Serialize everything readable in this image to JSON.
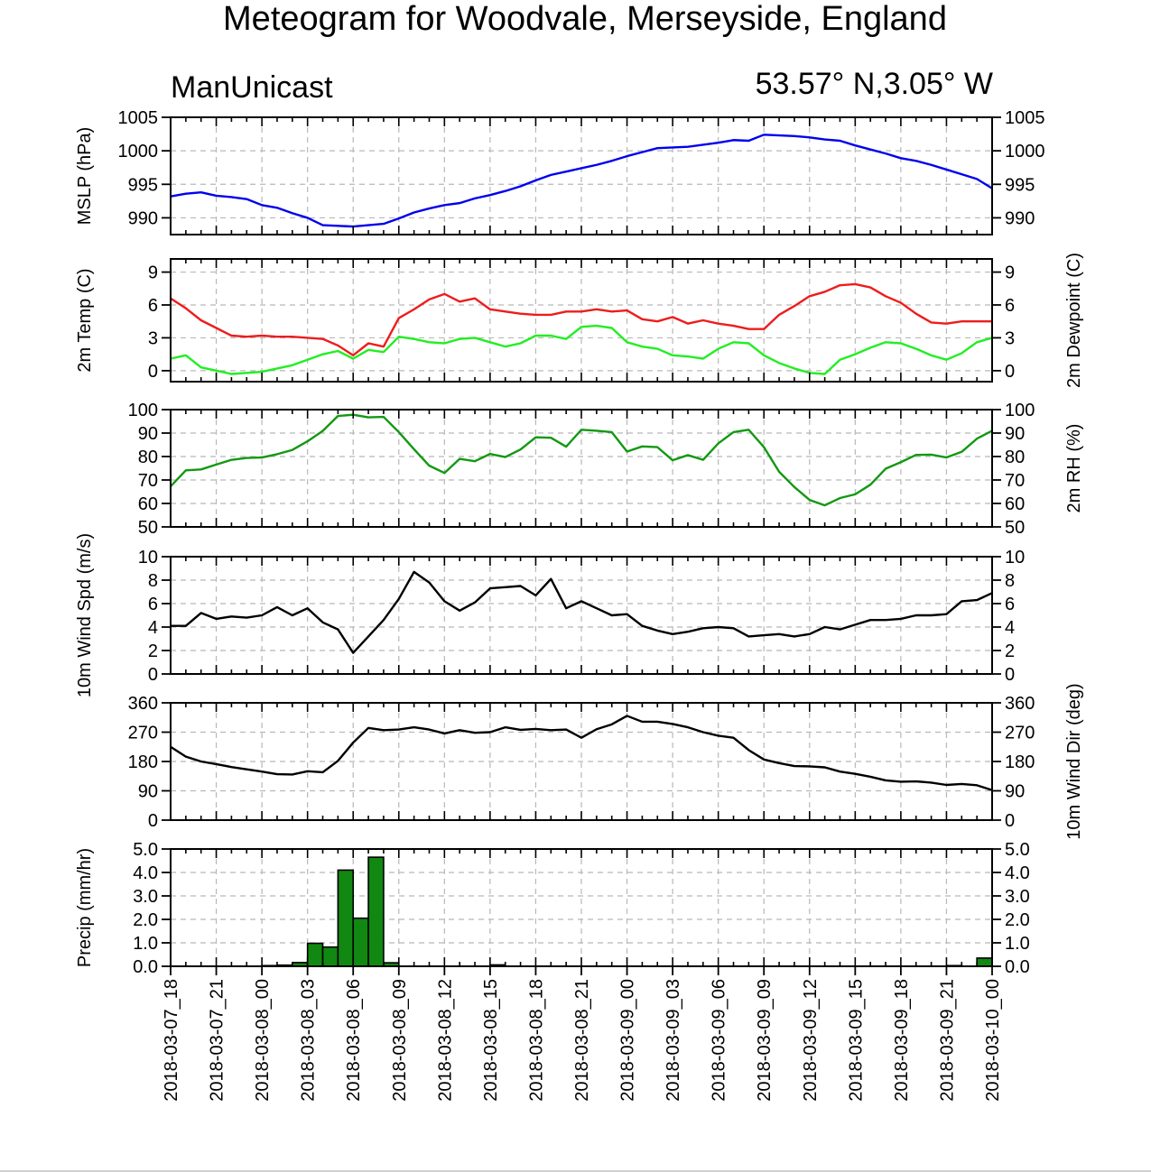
{
  "header": {
    "title": "Meteogram for Woodvale, Merseyside, England",
    "model_label": "ManUnicast",
    "location_label": "53.57° N,3.05° W"
  },
  "colors": {
    "mslp": "#0000ee",
    "temp": "#ee1c1c",
    "dewpoint": "#22ee22",
    "rh": "#119911",
    "wind": "#000000",
    "precip": "#118811",
    "grid": "#b8b8b8"
  },
  "chart_data": [
    {
      "type": "line",
      "id": "mslp",
      "ylabel": "MSLP (hPa)",
      "ylabel_right": "",
      "ylim": [
        987.5,
        1005
      ],
      "yticks": [
        990,
        995,
        1000,
        1005
      ],
      "ytick_labels": [
        "990",
        "995",
        "1000",
        "1005"
      ],
      "series": [
        {
          "key": "mslp",
          "values": [
            993.2,
            993.6,
            993.8,
            993.3,
            993.1,
            992.8,
            991.9,
            991.5,
            990.7,
            990.0,
            988.9,
            988.8,
            988.7,
            988.9,
            989.1,
            989.9,
            990.8,
            991.4,
            991.9,
            992.2,
            992.9,
            993.4,
            994.0,
            994.7,
            995.6,
            996.4,
            996.9,
            997.4,
            997.9,
            998.5,
            999.2,
            999.8,
            1000.4,
            1000.5,
            1000.6,
            1000.9,
            1001.2,
            1001.6,
            1001.5,
            1002.4,
            1002.3,
            1002.2,
            1002.0,
            1001.7,
            1001.5,
            1000.8,
            1000.2,
            999.6,
            998.9,
            998.5,
            997.9,
            997.2,
            996.5,
            995.8,
            994.4
          ]
        }
      ]
    },
    {
      "type": "line",
      "id": "temp",
      "ylabel": "2m Temp (C)",
      "ylabel_right": "2m Dewpoint (C)",
      "ylim": [
        -1,
        10.2
      ],
      "yticks": [
        0,
        3,
        6,
        9
      ],
      "ytick_labels": [
        "0",
        "3",
        "6",
        "9"
      ],
      "series": [
        {
          "key": "temp",
          "values": [
            6.6,
            5.7,
            4.6,
            3.9,
            3.2,
            3.1,
            3.2,
            3.1,
            3.1,
            3.0,
            2.9,
            2.3,
            1.4,
            2.5,
            2.2,
            4.8,
            5.6,
            6.5,
            7.0,
            6.3,
            6.6,
            5.6,
            5.4,
            5.2,
            5.1,
            5.1,
            5.4,
            5.4,
            5.6,
            5.4,
            5.5,
            4.7,
            4.5,
            4.9,
            4.3,
            4.6,
            4.3,
            4.1,
            3.8,
            3.8,
            5.1,
            5.9,
            6.8,
            7.2,
            7.8,
            7.9,
            7.6,
            6.8,
            6.2,
            5.2,
            4.4,
            4.3,
            4.5,
            4.5,
            4.5
          ]
        },
        {
          "key": "dewpoint",
          "values": [
            1.1,
            1.4,
            0.3,
            0.0,
            -0.3,
            -0.2,
            -0.1,
            0.2,
            0.5,
            1.0,
            1.5,
            1.8,
            1.1,
            1.9,
            1.7,
            3.1,
            2.9,
            2.6,
            2.5,
            2.9,
            3.0,
            2.6,
            2.2,
            2.5,
            3.2,
            3.2,
            2.9,
            4.0,
            4.1,
            3.9,
            2.6,
            2.2,
            2.0,
            1.4,
            1.3,
            1.1,
            2.0,
            2.6,
            2.5,
            1.4,
            0.7,
            0.2,
            -0.2,
            -0.3,
            1.0,
            1.5,
            2.1,
            2.6,
            2.5,
            2.0,
            1.4,
            1.0,
            1.6,
            2.6,
            3.0
          ]
        }
      ]
    },
    {
      "type": "line",
      "id": "rh",
      "ylabel": "",
      "ylabel_right": "2m RH (%)",
      "ylim": [
        50,
        100
      ],
      "yticks": [
        50,
        60,
        70,
        80,
        90,
        100
      ],
      "ytick_labels": [
        "50",
        "60",
        "70",
        "80",
        "90",
        "100"
      ],
      "series": [
        {
          "key": "rh",
          "values": [
            67.3,
            74.1,
            74.5,
            76.6,
            78.6,
            79.4,
            79.6,
            81.0,
            82.8,
            86.5,
            90.9,
            97.3,
            97.8,
            96.7,
            96.9,
            90.4,
            83.1,
            76.1,
            73.0,
            79.0,
            78.0,
            81.1,
            79.8,
            83.0,
            88.2,
            88.0,
            84.2,
            91.4,
            91.0,
            90.4,
            82.1,
            84.3,
            84.0,
            78.4,
            80.6,
            78.6,
            85.6,
            90.4,
            91.4,
            84.0,
            73.5,
            67.0,
            61.5,
            59.2,
            62.3,
            63.9,
            68.0,
            74.8,
            77.6,
            80.7,
            80.8,
            79.6,
            82.0,
            87.6,
            91.0
          ]
        }
      ]
    },
    {
      "type": "line",
      "id": "wspd",
      "ylabel": "10m Wind Spd (m/s)",
      "ylabel_right": "",
      "ylim": [
        0,
        10
      ],
      "yticks": [
        0,
        2,
        4,
        6,
        8,
        10
      ],
      "ytick_labels": [
        "0",
        "2",
        "4",
        "6",
        "8",
        "10"
      ],
      "series": [
        {
          "key": "wind",
          "values": [
            4.1,
            4.1,
            5.2,
            4.7,
            4.9,
            4.8,
            5.0,
            5.7,
            5.0,
            5.6,
            4.4,
            3.8,
            1.8,
            3.2,
            4.6,
            6.4,
            8.7,
            7.8,
            6.2,
            5.4,
            6.1,
            7.3,
            7.4,
            7.5,
            6.7,
            8.1,
            5.6,
            6.2,
            5.6,
            5.0,
            5.1,
            4.1,
            3.7,
            3.4,
            3.6,
            3.9,
            4.0,
            3.9,
            3.2,
            3.3,
            3.4,
            3.2,
            3.4,
            4.0,
            3.8,
            4.2,
            4.6,
            4.6,
            4.7,
            5.0,
            5.0,
            5.1,
            6.2,
            6.3,
            6.9
          ]
        }
      ]
    },
    {
      "type": "line",
      "id": "wdir",
      "ylabel": "",
      "ylabel_right": "10m Wind Dir (deg)",
      "ylim": [
        0,
        360
      ],
      "yticks": [
        0,
        90,
        180,
        270,
        360
      ],
      "ytick_labels": [
        "0",
        "90",
        "180",
        "270",
        "360"
      ],
      "series": [
        {
          "key": "wind",
          "values": [
            225,
            195,
            180,
            172,
            163,
            156,
            149,
            141,
            140,
            150,
            147,
            182,
            238,
            283,
            276,
            278,
            285,
            278,
            266,
            276,
            268,
            270,
            285,
            277,
            280,
            276,
            278,
            253,
            279,
            294,
            320,
            302,
            302,
            295,
            285,
            270,
            259,
            253,
            215,
            186,
            175,
            166,
            165,
            162,
            149,
            142,
            133,
            122,
            118,
            119,
            115,
            108,
            111,
            107,
            92
          ]
        }
      ]
    },
    {
      "type": "bar",
      "id": "precip",
      "ylabel": "Precip (mm/hr)",
      "ylabel_right": "",
      "ylim": [
        0,
        5
      ],
      "yticks": [
        0,
        1,
        2,
        3,
        4,
        5
      ],
      "ytick_labels": [
        "0.0",
        "1.0",
        "2.0",
        "3.0",
        "4.0",
        "5.0"
      ],
      "series": [
        {
          "key": "precip",
          "values": [
            0,
            0,
            0,
            0,
            0,
            0,
            0.03,
            0.05,
            0.16,
            0.98,
            0.82,
            4.1,
            2.05,
            4.65,
            0.15,
            0,
            0,
            0,
            0,
            0,
            0,
            0.06,
            0,
            0,
            0,
            0,
            0,
            0,
            0,
            0,
            0,
            0,
            0,
            0,
            0,
            0,
            0,
            0,
            0,
            0,
            0,
            0,
            0,
            0,
            0,
            0,
            0,
            0,
            0,
            0,
            0,
            0.03,
            0,
            0.35
          ]
        }
      ]
    }
  ],
  "x_axis": {
    "categories": [
      "2018-03-07_18",
      "2018-03-07_21",
      "2018-03-08_00",
      "2018-03-08_03",
      "2018-03-08_06",
      "2018-03-08_09",
      "2018-03-08_12",
      "2018-03-08_15",
      "2018-03-08_18",
      "2018-03-08_21",
      "2018-03-09_00",
      "2018-03-09_03",
      "2018-03-09_06",
      "2018-03-09_09",
      "2018-03-09_12",
      "2018-03-09_15",
      "2018-03-09_18",
      "2018-03-09_21",
      "2018-03-10_00"
    ],
    "hours_between_labels": 3
  }
}
